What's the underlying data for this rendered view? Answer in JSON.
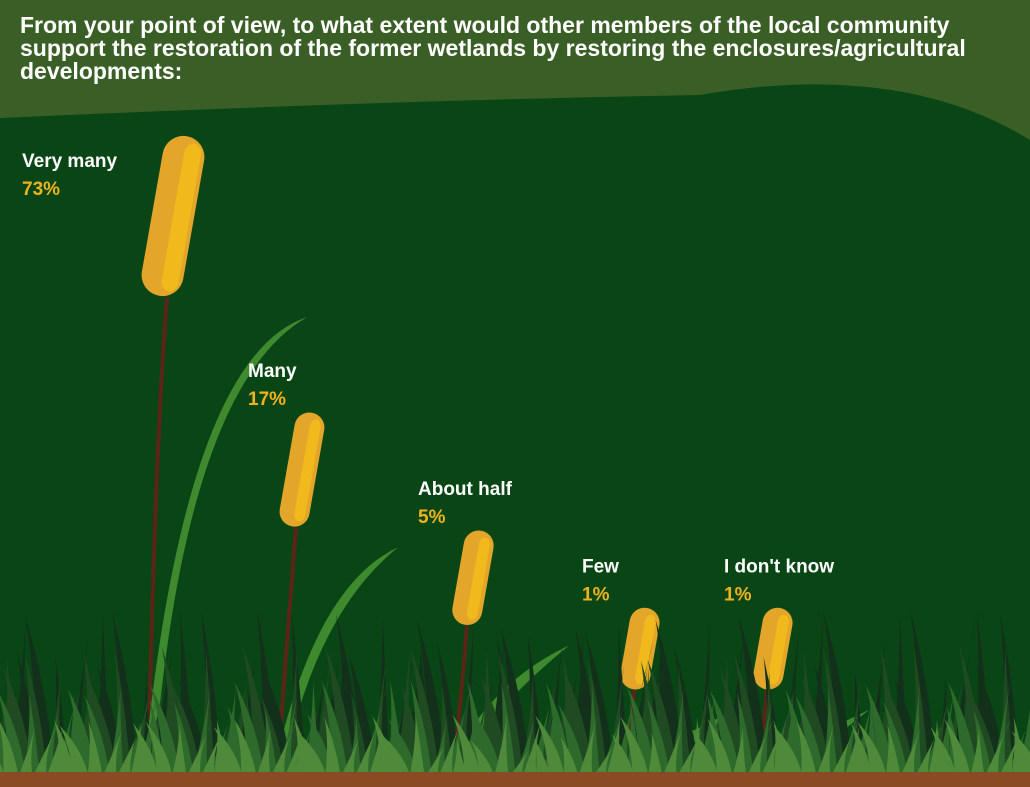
{
  "chart_data": {
    "type": "cattail",
    "title": "From your point of view, to what extent would other members of the local community support the restoration of the former wetlands by restoring the enclosures/agricultural developments:",
    "categories": [
      "Very many",
      "Many",
      "About half",
      "Few",
      "I don't know"
    ],
    "values": [
      73,
      17,
      5,
      1,
      1
    ],
    "value_labels": [
      "73%",
      "17%",
      "5%",
      "1%",
      "1%"
    ],
    "color": "#e3a52a"
  }
}
